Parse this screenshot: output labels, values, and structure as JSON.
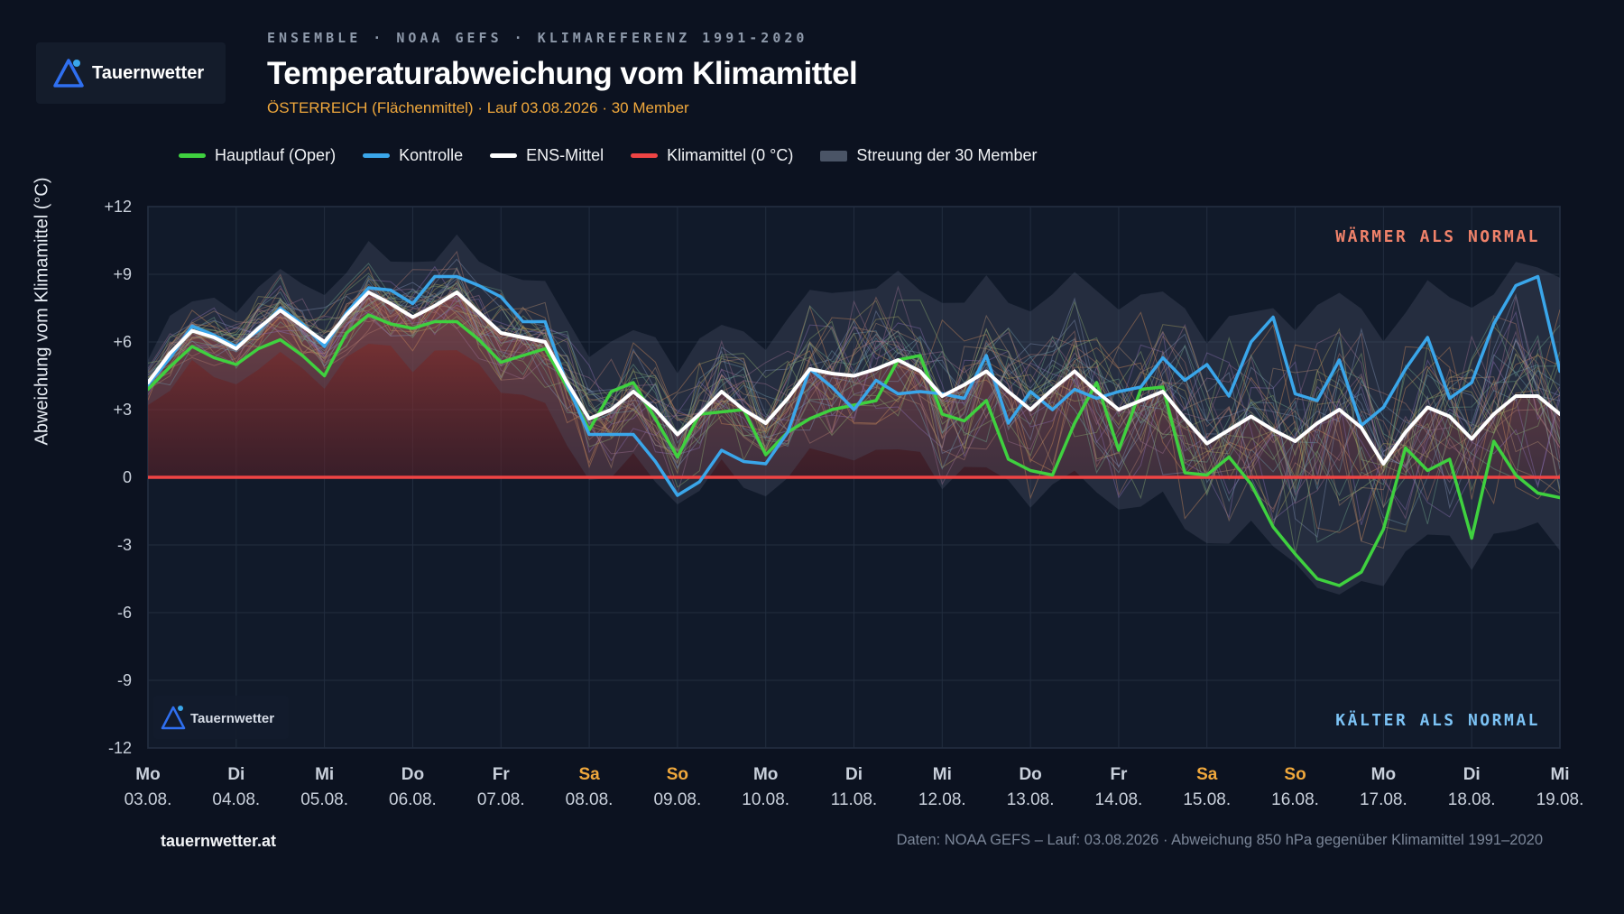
{
  "header": {
    "brand": "Tauernwetter",
    "supertitle": "ENSEMBLE · NOAA GEFS · KLIMAREFERENZ 1991-2020",
    "title": "Temperaturabweichung vom Klimamittel",
    "subtitle": "ÖSTERREICH (Flächenmittel) · Lauf 03.08.2026 · 30 Member"
  },
  "legend": [
    {
      "label": "Hauptlauf (Oper)",
      "color": "#3fd13f",
      "kind": "line"
    },
    {
      "label": "Kontrolle",
      "color": "#3aa6ea",
      "kind": "line"
    },
    {
      "label": "ENS-Mittel",
      "color": "#ffffff",
      "kind": "line"
    },
    {
      "label": "Klimamittel (0 °C)",
      "color": "#ef4444",
      "kind": "line"
    },
    {
      "label": "Streuung der 30 Member",
      "color": "#4a5466",
      "kind": "box"
    }
  ],
  "annotations": {
    "warm": "WÄRMER ALS NORMAL",
    "cold": "KÄLTER ALS NORMAL",
    "watermark": "Tauernwetter"
  },
  "footer": {
    "site": "tauernwetter.at",
    "source": "Daten: NOAA GEFS – Lauf: 03.08.2026 · Abweichung 850 hPa gegenüber Klimamittel 1991–2020"
  },
  "chart_data": {
    "type": "line",
    "ylabel": "Abweichung vom Klimamittel (°C)",
    "ylim": [
      -12,
      12
    ],
    "yticks": [
      12,
      9,
      6,
      3,
      0,
      -3,
      -6,
      -9,
      -12
    ],
    "ytick_labels": [
      "+12",
      "+9",
      "+6",
      "+3",
      "0",
      "-3",
      "-6",
      "-9",
      "-12"
    ],
    "xlim": [
      0,
      16
    ],
    "x_step": 0.25,
    "grid": true,
    "legend_position": "top",
    "x_ticks": [
      {
        "day": "Mo",
        "date": "03.08.",
        "weekend": false
      },
      {
        "day": "Di",
        "date": "04.08.",
        "weekend": false
      },
      {
        "day": "Mi",
        "date": "05.08.",
        "weekend": false
      },
      {
        "day": "Do",
        "date": "06.08.",
        "weekend": false
      },
      {
        "day": "Fr",
        "date": "07.08.",
        "weekend": false
      },
      {
        "day": "Sa",
        "date": "08.08.",
        "weekend": true
      },
      {
        "day": "So",
        "date": "09.08.",
        "weekend": true
      },
      {
        "day": "Mo",
        "date": "10.08.",
        "weekend": false
      },
      {
        "day": "Di",
        "date": "11.08.",
        "weekend": false
      },
      {
        "day": "Mi",
        "date": "12.08.",
        "weekend": false
      },
      {
        "day": "Do",
        "date": "13.08.",
        "weekend": false
      },
      {
        "day": "Fr",
        "date": "14.08.",
        "weekend": false
      },
      {
        "day": "Sa",
        "date": "15.08.",
        "weekend": true
      },
      {
        "day": "So",
        "date": "16.08.",
        "weekend": true
      },
      {
        "day": "Mo",
        "date": "17.08.",
        "weekend": false
      },
      {
        "day": "Di",
        "date": "18.08.",
        "weekend": false
      },
      {
        "day": "Mi",
        "date": "19.08.",
        "weekend": false
      }
    ],
    "climate_line": 0,
    "series": [
      {
        "name": "ENS-Mittel",
        "color": "#ffffff",
        "width": 4,
        "values": [
          4.2,
          5.5,
          6.5,
          6.2,
          5.7,
          6.6,
          7.4,
          6.7,
          6.0,
          7.2,
          8.2,
          7.7,
          7.1,
          7.6,
          8.2,
          7.3,
          6.4,
          6.2,
          6.0,
          4.2,
          2.6,
          3.0,
          3.8,
          3.0,
          1.9,
          2.8,
          3.8,
          3.0,
          2.4,
          3.5,
          4.8,
          4.6,
          4.5,
          4.8,
          5.2,
          4.7,
          3.6,
          4.1,
          4.7,
          3.8,
          3.0,
          3.9,
          4.7,
          3.8,
          3.0,
          3.4,
          3.8,
          2.6,
          1.5,
          2.1,
          2.7,
          2.1,
          1.6,
          2.4,
          3.0,
          2.2,
          0.6,
          2.0,
          3.1,
          2.7,
          1.7,
          2.8,
          3.6,
          3.6,
          2.8
        ]
      },
      {
        "name": "Hauptlauf (Oper)",
        "color": "#3fd13f",
        "width": 3.5,
        "values": [
          3.9,
          4.9,
          5.8,
          5.3,
          5.0,
          5.7,
          6.1,
          5.4,
          4.5,
          6.4,
          7.2,
          6.8,
          6.6,
          6.9,
          6.9,
          6.1,
          5.1,
          5.4,
          5.7,
          4.0,
          2.1,
          3.8,
          4.2,
          2.6,
          0.9,
          2.8,
          2.9,
          3.0,
          1.0,
          2.0,
          2.6,
          3.0,
          3.2,
          3.4,
          5.2,
          5.4,
          2.8,
          2.5,
          3.4,
          0.8,
          0.3,
          0.1,
          2.4,
          4.2,
          1.2,
          3.9,
          4.0,
          0.2,
          0.1,
          0.9,
          -0.3,
          -2.2,
          -3.4,
          -4.5,
          -4.8,
          -4.2,
          -2.3,
          1.3,
          0.3,
          0.8,
          -2.7,
          1.6,
          0.1,
          -0.7,
          -0.9
        ]
      },
      {
        "name": "Kontrolle",
        "color": "#3aa6ea",
        "width": 3.5,
        "values": [
          4.1,
          5.3,
          6.7,
          6.3,
          5.8,
          6.5,
          7.5,
          6.8,
          5.8,
          7.3,
          8.4,
          8.3,
          7.7,
          8.9,
          8.9,
          8.5,
          8.0,
          6.9,
          6.9,
          4.1,
          1.9,
          1.9,
          1.9,
          0.7,
          -0.8,
          -0.2,
          1.2,
          0.7,
          0.6,
          2.0,
          4.8,
          4.0,
          3.0,
          4.3,
          3.7,
          3.8,
          3.7,
          3.5,
          5.4,
          2.4,
          3.8,
          3.0,
          3.9,
          3.5,
          3.8,
          4.0,
          5.3,
          4.3,
          5.0,
          3.6,
          6.0,
          7.1,
          3.7,
          3.4,
          5.2,
          2.3,
          3.1,
          4.8,
          6.2,
          3.5,
          4.2,
          6.8,
          8.5,
          8.9,
          4.7
        ]
      }
    ]
  }
}
